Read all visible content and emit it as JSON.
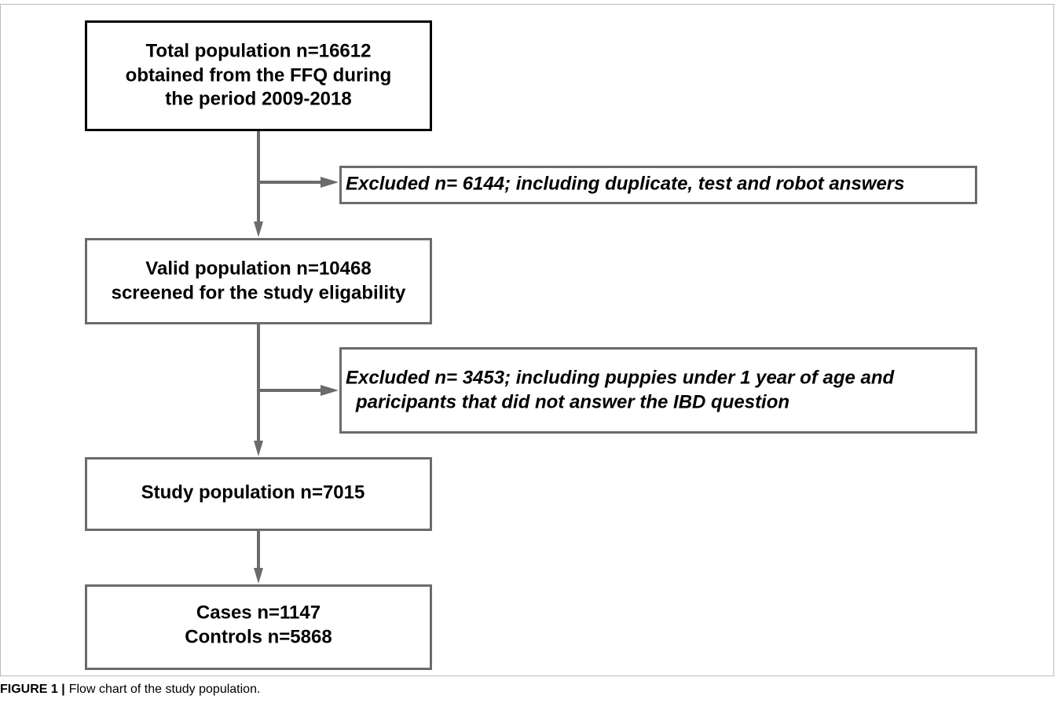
{
  "nodes": [
    {
      "lines": [
        "Total population n=16612",
        "obtained from the FFQ during",
        "the period 2009-2018"
      ]
    },
    {
      "lines": [
        "Valid population n=10468",
        "screened for the study eligability"
      ]
    },
    {
      "lines": [
        "Study population n=7015"
      ]
    },
    {
      "lines": [
        "Cases n=1147",
        "Controls n=5868"
      ]
    }
  ],
  "exclusions": [
    {
      "lines": [
        "Excluded n= 6144; including duplicate, test and robot answers"
      ]
    },
    {
      "lines": [
        "Excluded n= 3453; including puppies under 1 year of age and",
        "paricipants that did not answer the IBD question"
      ]
    }
  ],
  "caption": {
    "label": "FIGURE 1 |",
    "text": "Flow chart of the study population."
  }
}
